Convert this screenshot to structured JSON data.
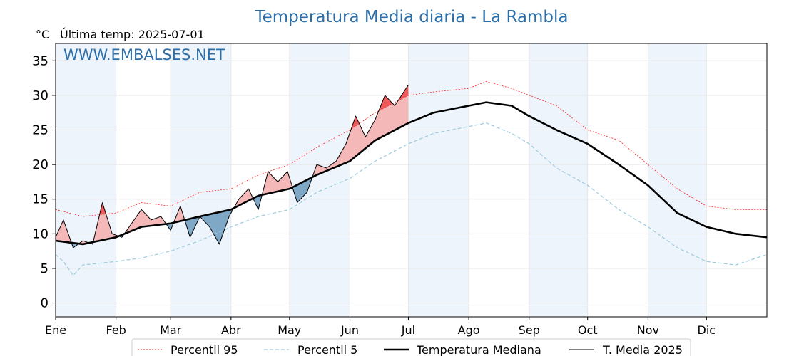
{
  "header": {
    "title": "Temperatura Media diaria - La Rambla",
    "unit": "°C",
    "last_temp": "Última temp: 2025-07-01",
    "watermark": "WWW.EMBALSES.NET"
  },
  "colors": {
    "title": "#2b6ea8",
    "p95": "#ff2020",
    "p5": "#9ccbdc",
    "median": "#000000",
    "media": "#000000",
    "above_fill": "#f4b8b8",
    "above_strong_fill": "#f05a5a",
    "below_fill": "#7fa7c6",
    "month_band": "#eef4fb"
  },
  "legend": {
    "items": [
      {
        "label": "Percentil 95",
        "style": "p95"
      },
      {
        "label": "Percentil 5",
        "style": "p5"
      },
      {
        "label": "Temperatura Mediana",
        "style": "median"
      },
      {
        "label": "T. Media 2025",
        "style": "media"
      }
    ]
  },
  "chart_data": {
    "type": "line",
    "title": "Temperatura Media diaria - La Rambla",
    "ylabel": "°C",
    "ylim": [
      -2,
      37.5
    ],
    "xlim": [
      1,
      366
    ],
    "yticks": [
      0,
      5,
      10,
      15,
      20,
      25,
      30,
      35
    ],
    "months": [
      {
        "label": "Ene",
        "day": 1
      },
      {
        "label": "Feb",
        "day": 32
      },
      {
        "label": "Mar",
        "day": 60
      },
      {
        "label": "Abr",
        "day": 91
      },
      {
        "label": "May",
        "day": 121
      },
      {
        "label": "Jun",
        "day": 152
      },
      {
        "label": "Jul",
        "day": 182
      },
      {
        "label": "Ago",
        "day": 213
      },
      {
        "label": "Sep",
        "day": 244
      },
      {
        "label": "Oct",
        "day": 274
      },
      {
        "label": "Nov",
        "day": 305
      },
      {
        "label": "Dic",
        "day": 335
      }
    ],
    "grid": true,
    "legend_position": "bottom",
    "series": [
      {
        "name": "Percentil 95",
        "key": "p95",
        "x": [
          1,
          15,
          32,
          45,
          60,
          75,
          91,
          105,
          121,
          135,
          152,
          165,
          182,
          195,
          213,
          222,
          235,
          244,
          258,
          274,
          290,
          305,
          320,
          335,
          350,
          366
        ],
        "y": [
          13.5,
          12.5,
          13.0,
          14.5,
          14.0,
          16.0,
          16.5,
          18.5,
          20.0,
          22.5,
          25.0,
          27.5,
          30.0,
          30.5,
          31.0,
          32.0,
          31.0,
          30.0,
          28.5,
          25.0,
          23.5,
          20.0,
          16.5,
          14.0,
          13.5,
          13.5
        ]
      },
      {
        "name": "Percentil 5",
        "key": "p5",
        "x": [
          1,
          5,
          10,
          15,
          32,
          45,
          60,
          75,
          91,
          105,
          121,
          135,
          152,
          165,
          182,
          195,
          213,
          222,
          235,
          244,
          258,
          274,
          290,
          305,
          320,
          335,
          350,
          366
        ],
        "y": [
          7.0,
          6.0,
          4.0,
          5.5,
          6.0,
          6.5,
          7.5,
          9.0,
          11.0,
          12.5,
          13.5,
          16.0,
          18.0,
          20.5,
          23.0,
          24.5,
          25.5,
          26.0,
          24.5,
          23.0,
          19.5,
          17.0,
          13.5,
          11.0,
          8.0,
          6.0,
          5.5,
          7.0
        ]
      },
      {
        "name": "Temperatura Mediana",
        "key": "median",
        "x": [
          1,
          15,
          32,
          45,
          60,
          75,
          91,
          105,
          121,
          135,
          152,
          165,
          182,
          195,
          213,
          222,
          235,
          244,
          258,
          274,
          290,
          305,
          320,
          335,
          350,
          366
        ],
        "y": [
          9.0,
          8.5,
          9.5,
          11.0,
          11.5,
          12.5,
          13.5,
          15.5,
          16.5,
          18.5,
          20.5,
          23.5,
          26.0,
          27.5,
          28.5,
          29.0,
          28.5,
          27.0,
          25.0,
          23.0,
          20.0,
          17.0,
          13.0,
          11.0,
          10.0,
          9.5
        ]
      },
      {
        "name": "T. Media 2025",
        "key": "media",
        "x": [
          1,
          5,
          10,
          15,
          20,
          25,
          30,
          35,
          40,
          45,
          50,
          55,
          60,
          65,
          70,
          75,
          80,
          85,
          90,
          95,
          100,
          105,
          110,
          115,
          120,
          125,
          130,
          135,
          140,
          145,
          150,
          155,
          160,
          165,
          170,
          175,
          182
        ],
        "y": [
          9.5,
          12.0,
          8.0,
          9.0,
          8.5,
          14.5,
          10.0,
          9.5,
          11.5,
          13.5,
          12.0,
          12.5,
          10.5,
          14.0,
          9.5,
          12.5,
          11.0,
          8.5,
          12.5,
          15.0,
          16.5,
          13.5,
          19.0,
          17.5,
          19.0,
          14.5,
          16.0,
          20.0,
          19.5,
          20.5,
          23.0,
          27.0,
          24.0,
          26.5,
          30.0,
          28.5,
          31.5
        ]
      }
    ]
  }
}
